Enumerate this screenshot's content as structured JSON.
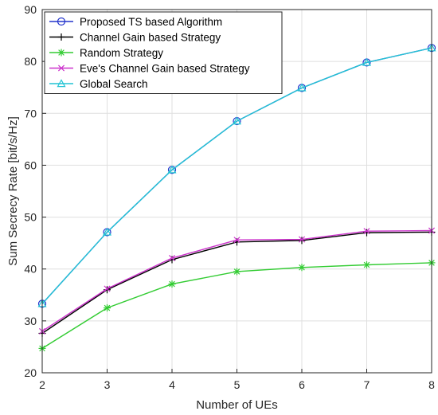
{
  "chart_data": {
    "type": "line",
    "title": "",
    "xlabel": "Number of UEs",
    "ylabel": "Sum Secrecy Rate [bit/s/Hz]",
    "x": [
      2,
      3,
      4,
      5,
      6,
      7,
      8
    ],
    "xlim": [
      2,
      8
    ],
    "ylim": [
      20,
      90
    ],
    "xticks": [
      "2",
      "3",
      "4",
      "5",
      "6",
      "7",
      "8"
    ],
    "yticks": [
      "20",
      "30",
      "40",
      "50",
      "60",
      "70",
      "80",
      "90"
    ],
    "grid": true,
    "legend_position": "top-left",
    "series": [
      {
        "name": "Proposed TS based Algorithm",
        "values": [
          33.3,
          47.1,
          59.1,
          68.5,
          74.9,
          79.8,
          82.6
        ],
        "color": "#2233cc",
        "marker": "circle"
      },
      {
        "name": "Channel Gain based Strategy",
        "values": [
          27.6,
          36.0,
          41.8,
          45.2,
          45.5,
          47.0,
          47.1
        ],
        "color": "#000000",
        "marker": "plus"
      },
      {
        "name": "Random Strategy",
        "values": [
          24.7,
          32.5,
          37.1,
          39.5,
          40.3,
          40.8,
          41.2
        ],
        "color": "#33cc33",
        "marker": "asterisk"
      },
      {
        "name": "Eve's Channel Gain based Strategy",
        "values": [
          28.0,
          36.2,
          42.1,
          45.6,
          45.7,
          47.3,
          47.4
        ],
        "color": "#cc33cc",
        "marker": "x"
      },
      {
        "name": "Global Search",
        "values": [
          33.3,
          47.1,
          59.1,
          68.5,
          74.9,
          79.8,
          82.6
        ],
        "color": "#22c4d4",
        "marker": "triangle"
      }
    ]
  }
}
